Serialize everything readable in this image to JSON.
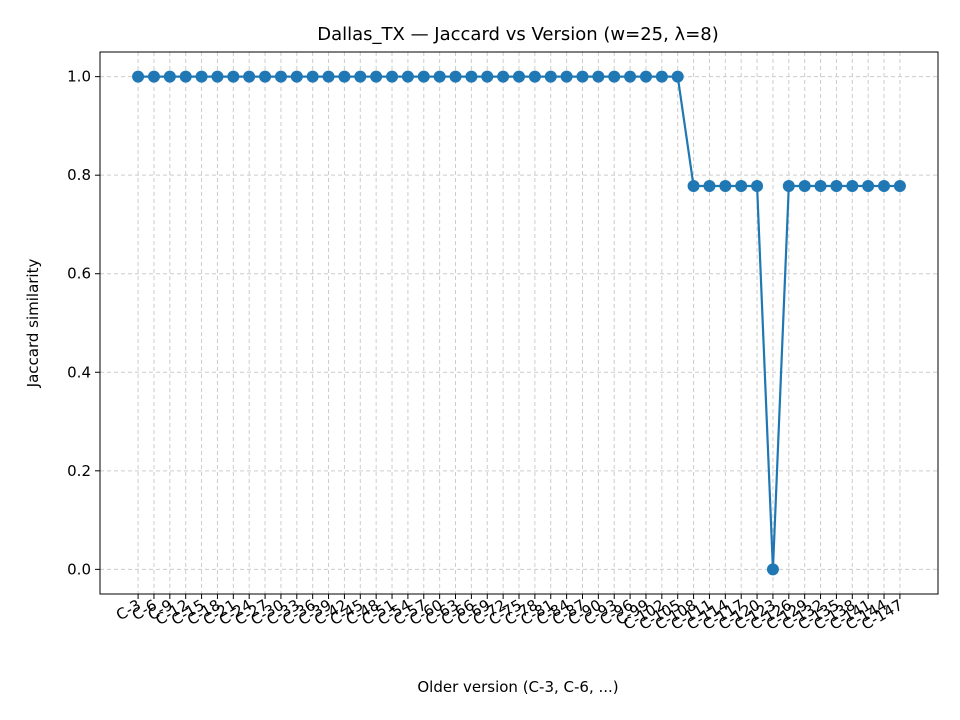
{
  "chart_data": {
    "type": "line",
    "title": "Dallas_TX — Jaccard vs Version (w=25, λ=8)",
    "x_label": "Older version (C-3, C-6, ...)",
    "y_label": "Jaccard similarity",
    "categories": [
      "C-3",
      "C-6",
      "C-9",
      "C-12",
      "C-15",
      "C-18",
      "C-21",
      "C-24",
      "C-27",
      "C-30",
      "C-33",
      "C-36",
      "C-39",
      "C-42",
      "C-45",
      "C-48",
      "C-51",
      "C-54",
      "C-57",
      "C-60",
      "C-63",
      "C-66",
      "C-69",
      "C-72",
      "C-75",
      "C-78",
      "C-81",
      "C-84",
      "C-87",
      "C-90",
      "C-93",
      "C-96",
      "C-99",
      "C-102",
      "C-105",
      "C-108",
      "C-111",
      "C-114",
      "C-117",
      "C-120",
      "C-123",
      "C-126",
      "C-129",
      "C-132",
      "C-135",
      "C-138",
      "C-141",
      "C-144",
      "C-147"
    ],
    "series": [
      {
        "name": "Jaccard",
        "color": "#1f77b4",
        "values": [
          1,
          1,
          1,
          1,
          1,
          1,
          1,
          1,
          1,
          1,
          1,
          1,
          1,
          1,
          1,
          1,
          1,
          1,
          1,
          1,
          1,
          1,
          1,
          1,
          1,
          1,
          1,
          1,
          1,
          1,
          1,
          1,
          1,
          1,
          1,
          0.778,
          0.778,
          0.778,
          0.778,
          0.778,
          0,
          0.778,
          0.778,
          0.778,
          0.778,
          0.778,
          0.778,
          0.778,
          0.778
        ]
      }
    ],
    "ylim": [
      -0.05,
      1.05
    ],
    "yticks": [
      {
        "value": 0,
        "label": "0.0"
      },
      {
        "value": 0.2,
        "label": "0.2"
      },
      {
        "value": 0.4,
        "label": "0.4"
      },
      {
        "value": 0.6,
        "label": "0.6"
      },
      {
        "value": 0.8,
        "label": "0.8"
      },
      {
        "value": 1,
        "label": "1.0"
      }
    ],
    "grid": true
  }
}
